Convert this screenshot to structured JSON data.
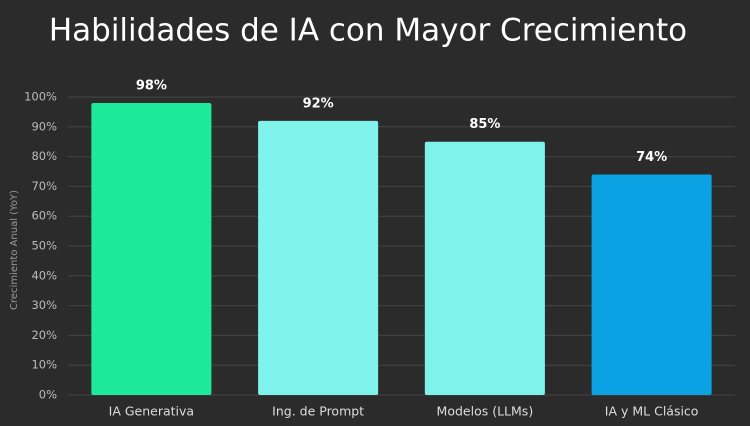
{
  "chart_data": {
    "type": "bar",
    "title": "Habilidades de IA con Mayor Crecimiento",
    "ylabel": "Crecimiento Anual (YoY)",
    "categories": [
      "IA Generativa",
      "Ing. de Prompt",
      "Modelos (LLMs)",
      "IA y ML Clásico"
    ],
    "values": [
      98,
      92,
      85,
      74
    ],
    "value_labels": [
      "98%",
      "92%",
      "85%",
      "74%"
    ],
    "colors": [
      "#1de99b",
      "#7ff2ec",
      "#7ff2ec",
      "#0aa2e2"
    ],
    "ylim": [
      0,
      100
    ],
    "yticks": [
      {
        "value": 0,
        "label": "0%"
      },
      {
        "value": 10,
        "label": "10%"
      },
      {
        "value": 20,
        "label": "20%"
      },
      {
        "value": 30,
        "label": "30%"
      },
      {
        "value": 40,
        "label": "40%"
      },
      {
        "value": 50,
        "label": "50%"
      },
      {
        "value": 60,
        "label": "60%"
      },
      {
        "value": 70,
        "label": "70%"
      },
      {
        "value": 80,
        "label": "80%"
      },
      {
        "value": 90,
        "label": "90%"
      },
      {
        "value": 100,
        "label": "100%"
      }
    ],
    "grid": true
  }
}
